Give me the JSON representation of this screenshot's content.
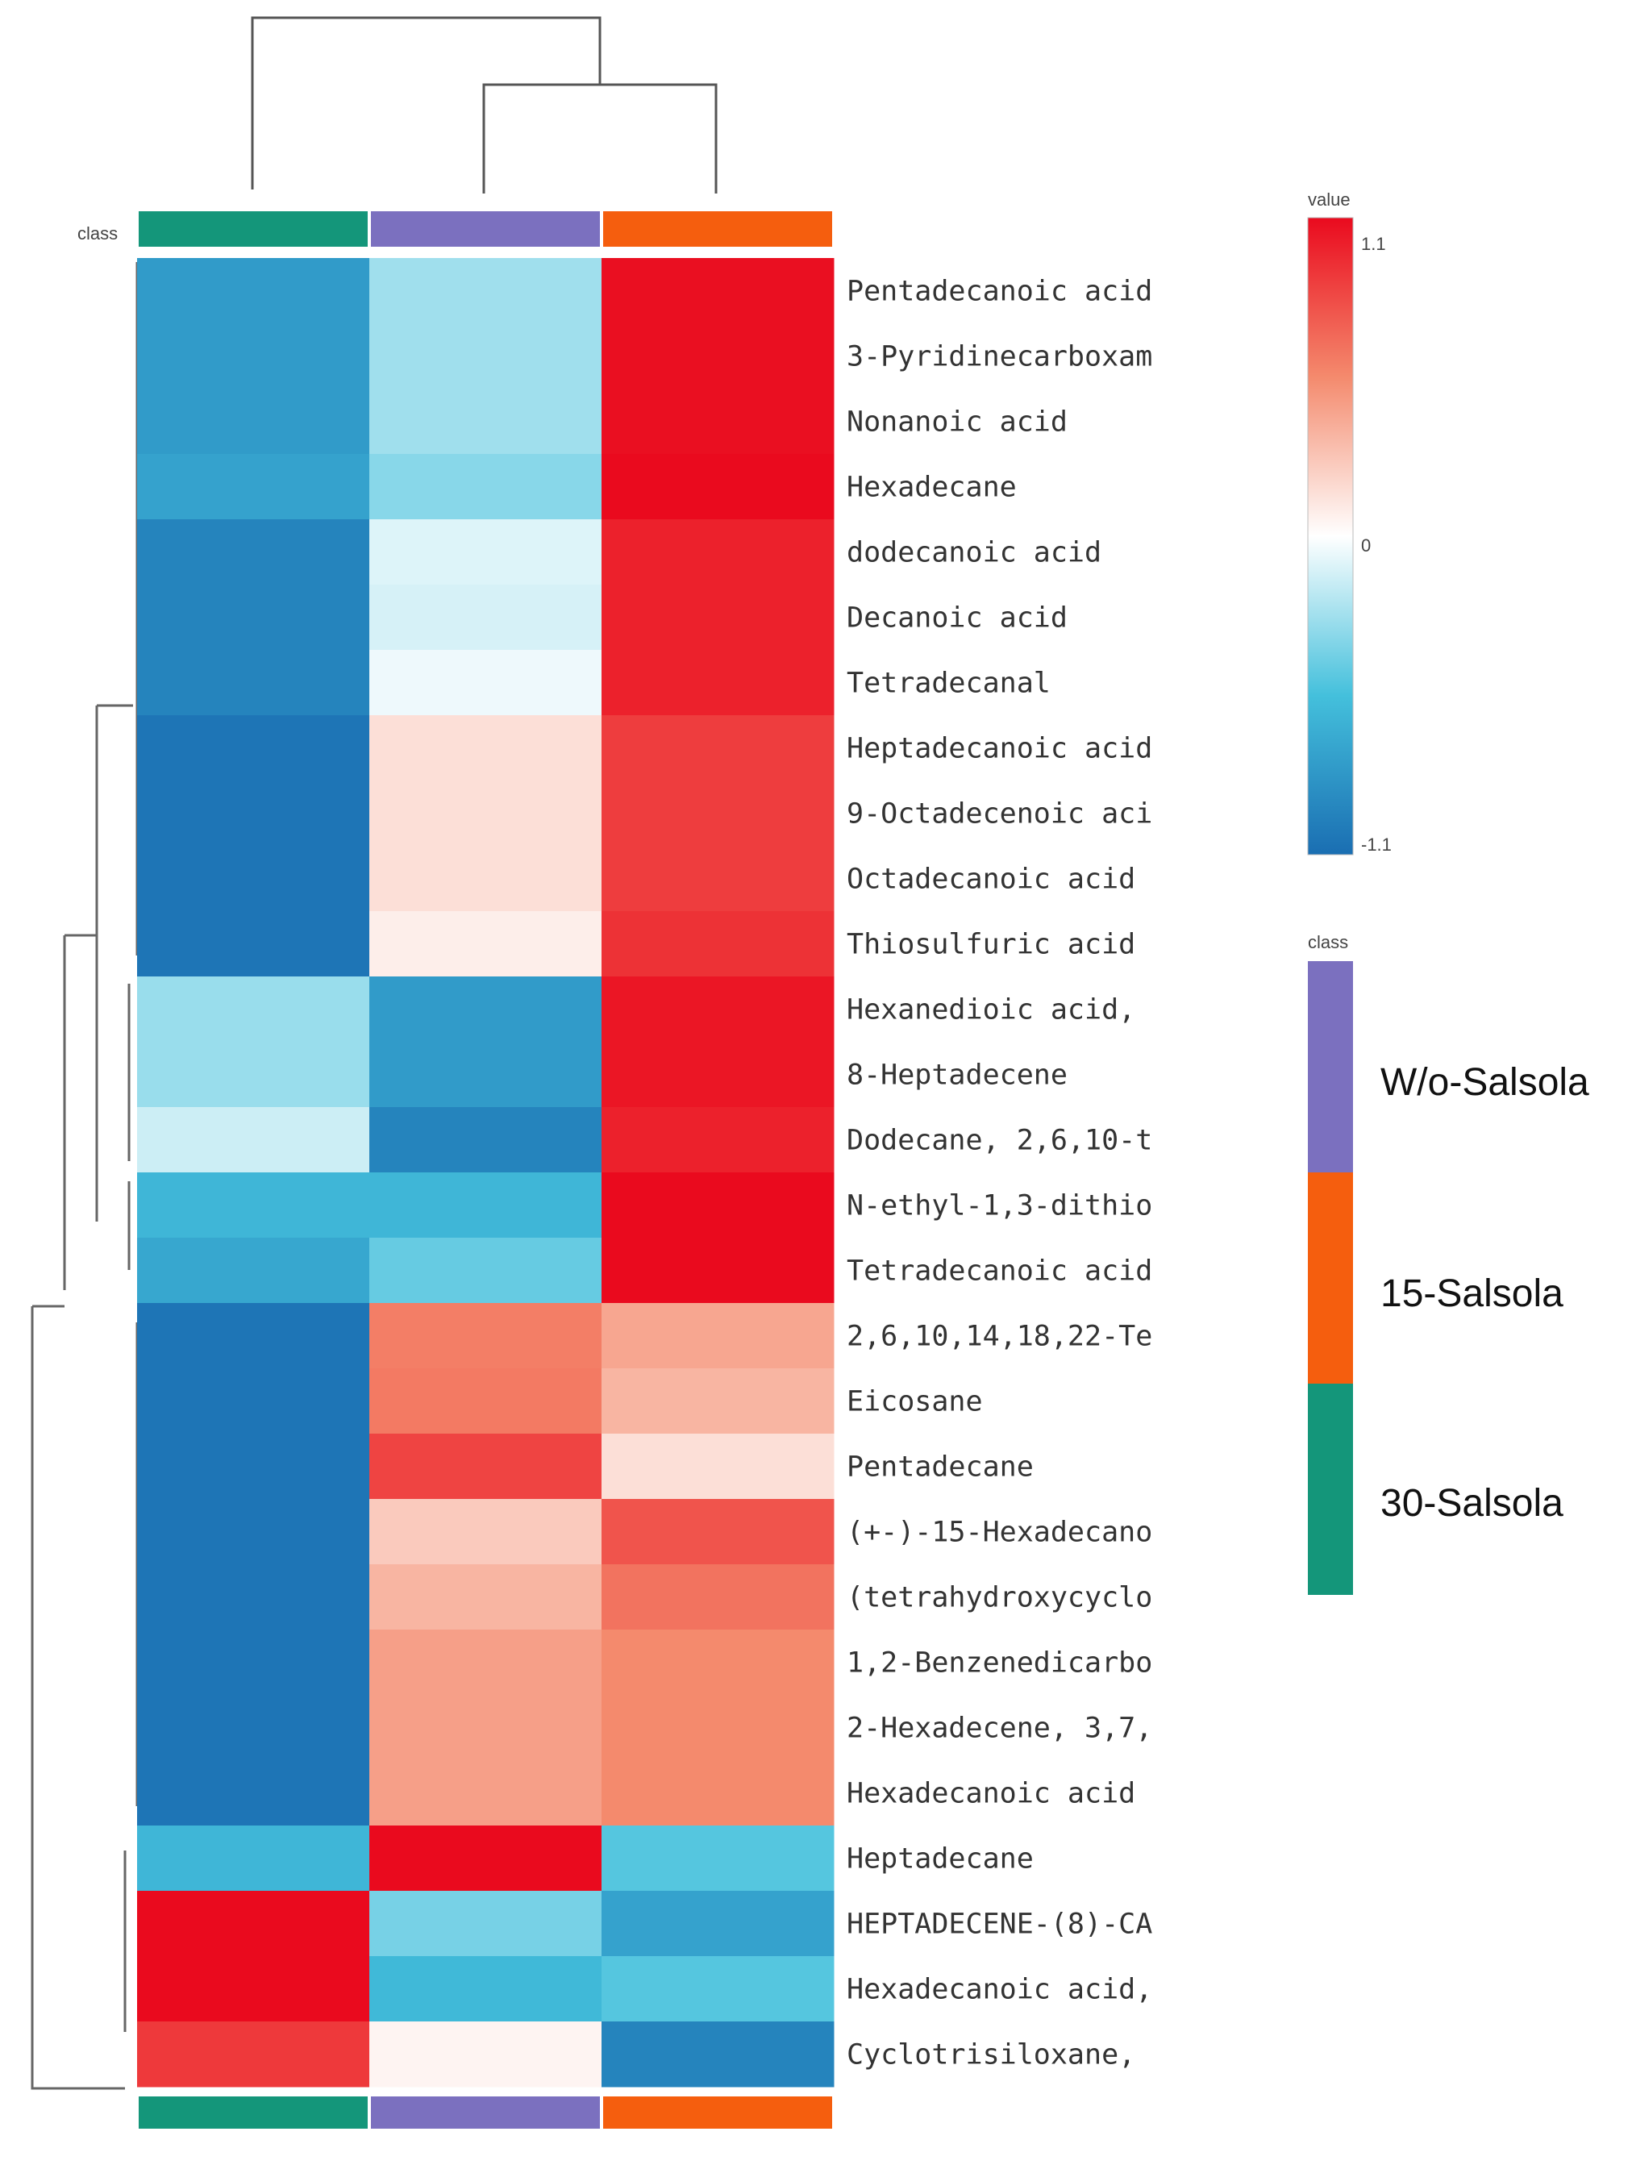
{
  "chart_data": {
    "type": "heatmap",
    "title": "",
    "columns": [
      "30-Salsola",
      "W/o-Salsola",
      "15-Salsola"
    ],
    "column_colors": [
      "#14967a",
      "#7b70bf",
      "#f55e0e"
    ],
    "class_label": "class",
    "rows": [
      "Pentadecanoic acid",
      "3-Pyridinecarboxam",
      "Nonanoic acid",
      "Hexadecane",
      "dodecanoic acid",
      "Decanoic acid",
      "Tetradecanal",
      "Heptadecanoic acid",
      "9-Octadecenoic aci",
      "Octadecanoic acid",
      "Thiosulfuric acid",
      "Hexanedioic acid,",
      "8-Heptadecene",
      "Dodecane, 2,6,10-t",
      "N-ethyl-1,3-dithio",
      "Tetradecanoic acid",
      "2,6,10,14,18,22-Te",
      "Eicosane",
      "Pentadecane",
      "(+-)-15-Hexadecano",
      "(tetrahydroxycyclo",
      "1,2-Benzenedicarbo",
      "2-Hexadecene, 3,7,",
      "Hexadecanoic acid",
      "Heptadecane",
      "HEPTADECENE-(8)-CA",
      "Hexadecanoic acid,",
      "Cyclotrisiloxane,"
    ],
    "values": [
      [
        -0.8,
        -0.28,
        1.08
      ],
      [
        -0.8,
        -0.28,
        1.08
      ],
      [
        -0.8,
        -0.28,
        1.08
      ],
      [
        -0.75,
        -0.35,
        1.1
      ],
      [
        -0.95,
        -0.1,
        1.0
      ],
      [
        -0.95,
        -0.12,
        1.0
      ],
      [
        -0.95,
        -0.05,
        1.0
      ],
      [
        -1.05,
        0.15,
        0.88
      ],
      [
        -1.05,
        0.15,
        0.88
      ],
      [
        -1.05,
        0.15,
        0.88
      ],
      [
        -1.05,
        0.08,
        0.93
      ],
      [
        -0.3,
        -0.8,
        1.05
      ],
      [
        -0.3,
        -0.8,
        1.05
      ],
      [
        -0.15,
        -0.95,
        1.0
      ],
      [
        -0.62,
        -0.62,
        1.1
      ],
      [
        -0.72,
        -0.45,
        1.1
      ],
      [
        -1.05,
        0.6,
        0.42
      ],
      [
        -1.05,
        0.62,
        0.35
      ],
      [
        -1.05,
        0.85,
        0.15
      ],
      [
        -1.05,
        0.25,
        0.78
      ],
      [
        -1.05,
        0.35,
        0.65
      ],
      [
        -1.05,
        0.45,
        0.55
      ],
      [
        -1.05,
        0.45,
        0.55
      ],
      [
        -1.05,
        0.45,
        0.55
      ],
      [
        -0.62,
        1.1,
        -0.5
      ],
      [
        1.1,
        -0.4,
        -0.75
      ],
      [
        1.1,
        -0.6,
        -0.5
      ],
      [
        0.9,
        0.05,
        -0.95
      ]
    ],
    "value_range": [
      -1.1,
      1.1
    ],
    "colorbar": {
      "label": "value",
      "max_label": "1.1",
      "mid_label": "0",
      "min_label": "-1.1"
    },
    "class_legend": {
      "title": "class",
      "entries": [
        "W/o-Salsola",
        "15-Salsola",
        "30-Salsola"
      ],
      "colors": [
        "#7b70bf",
        "#f55e0e",
        "#14967a"
      ]
    }
  }
}
